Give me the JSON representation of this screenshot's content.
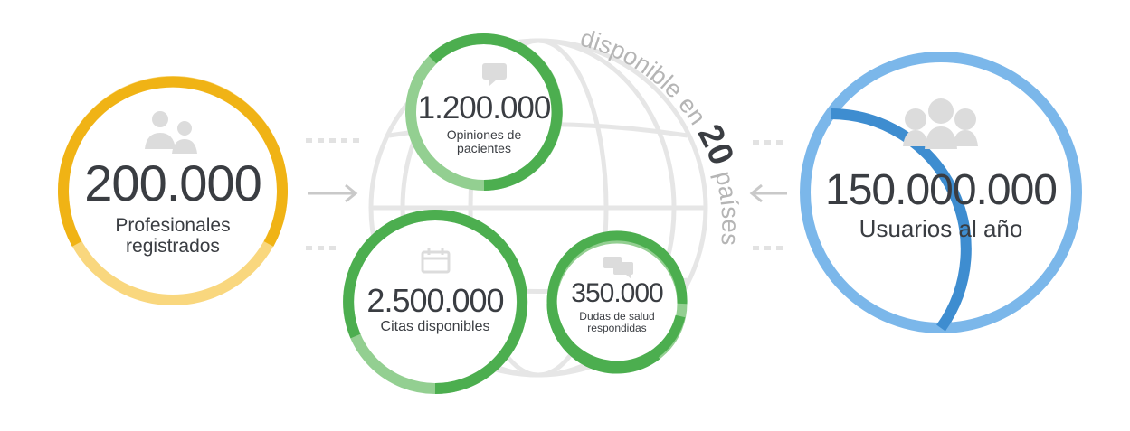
{
  "stats": {
    "professionals": {
      "value": "200.000",
      "label_line1": "Profesionales",
      "label_line2": "registrados"
    },
    "opinions": {
      "value": "1.200.000",
      "label_line1": "Opiniones de",
      "label_line2": "pacientes"
    },
    "appointments": {
      "value": "2.500.000",
      "label_line1": "Citas disponibles"
    },
    "questions": {
      "value": "350.000",
      "label_line1": "Dudas de salud",
      "label_line2": "respondidas"
    },
    "users": {
      "value": "150.000.000",
      "label_line1": "Usuarios al año"
    }
  },
  "availability": {
    "prefix": "disponible",
    "en": "en",
    "count": "20",
    "suffix": "países"
  },
  "colors": {
    "yellow": "#f0b315",
    "yellow_light": "#f9d77e",
    "green": "#4cae4f",
    "green_light": "#93cf91",
    "blue": "#3e8dd0",
    "blue_light": "#7bb7ea",
    "grey": "#d4d4d4",
    "text": "#3a3d42"
  },
  "icons": [
    "professionals-icon",
    "chat-bubble-icon",
    "calendar-icon",
    "chat-bubbles-icon",
    "users-icon",
    "globe-icon",
    "arrow-right-icon",
    "arrow-left-icon"
  ]
}
